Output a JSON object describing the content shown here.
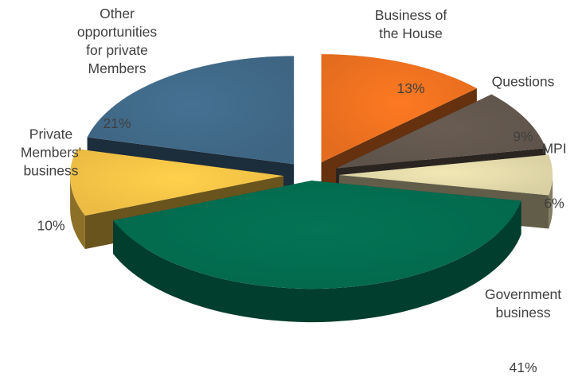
{
  "chart_data": {
    "type": "pie",
    "subtype": "exploded-3d",
    "title": "",
    "slices": [
      {
        "name": "Business of the House",
        "label": "Business of\nthe House",
        "value": 13,
        "value_label": "13%",
        "color": "#E36C1E"
      },
      {
        "name": "Questions",
        "label": "Questions",
        "value": 9,
        "value_label": "9%",
        "color": "#5E534A"
      },
      {
        "name": "MPI",
        "label": "MPI",
        "value": 6,
        "value_label": "6%",
        "color": "#D8CFA2"
      },
      {
        "name": "Government business",
        "label": "Government\nbusiness",
        "value": 41,
        "value_label": "41%",
        "color": "#03684C"
      },
      {
        "name": "Private Members' business",
        "label": "Private\nMembers'\nbusiness",
        "value": 10,
        "value_label": "10%",
        "color": "#EBBB43"
      },
      {
        "name": "Other opportunities for private Members",
        "label": "Other\nopportunities\nfor private\nMembers",
        "value": 21,
        "value_label": "21%",
        "color": "#3E6582"
      }
    ]
  }
}
